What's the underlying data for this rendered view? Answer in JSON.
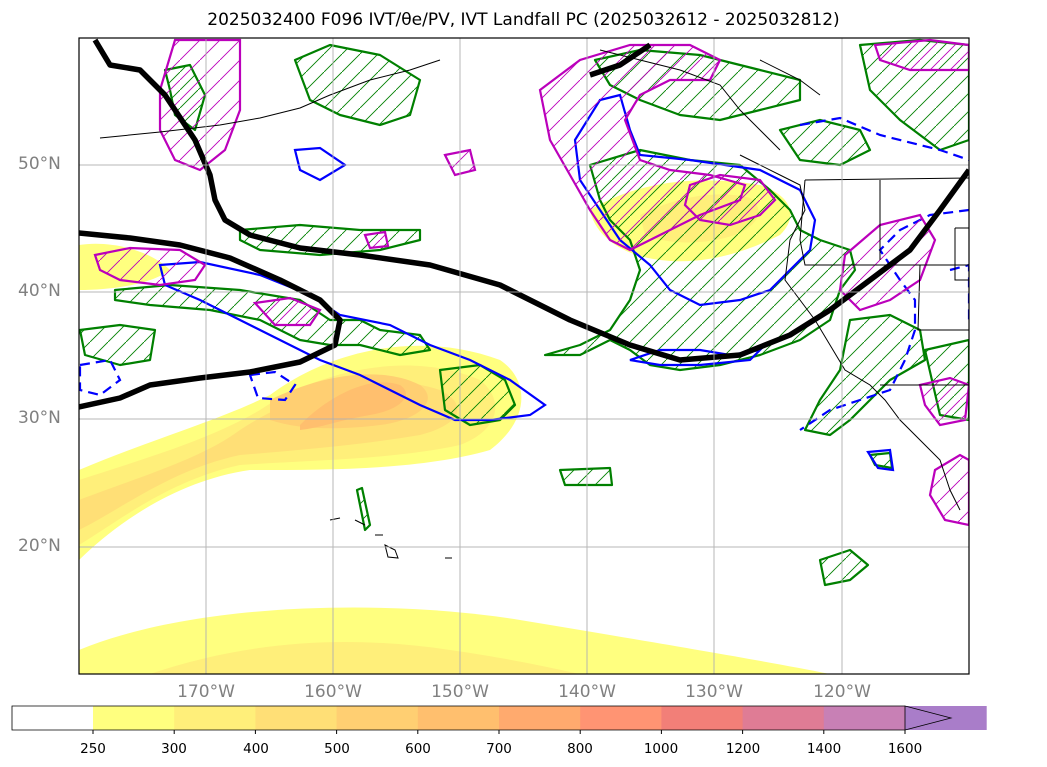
{
  "title": "2025032400 F096 IVT/θe/PV, IVT Landfall PC (2025032612 - 2025032812)",
  "latitude_labels": [
    "50°N",
    "40°N",
    "30°N",
    "20°N"
  ],
  "longitude_labels": [
    "170°W",
    "160°W",
    "150°W",
    "140°W",
    "130°W",
    "120°W"
  ],
  "colorbar": {
    "levels": [
      "250",
      "300",
      "400",
      "500",
      "600",
      "700",
      "800",
      "1000",
      "1200",
      "1400",
      "1600"
    ],
    "colors": [
      "#ffff7f",
      "#ffef7a",
      "#ffdf76",
      "#ffcf72",
      "#ffbf6e",
      "#ffaa6e",
      "#ff9473",
      "#f27f78",
      "#df7c95",
      "#c880b5",
      "#a97dc9"
    ],
    "extend": "max"
  },
  "map": {
    "projection": "plate-carree",
    "lon_range": [
      -180,
      -110
    ],
    "lat_range": [
      10,
      60
    ],
    "gridlines": true,
    "contour_colors": {
      "ivt_fill": "#ffef7a",
      "theta_e_contour": "#000000",
      "pv_positive": "#008000",
      "pv_negative": "#0000ff",
      "landfall_pc": "#bb00bb"
    }
  }
}
